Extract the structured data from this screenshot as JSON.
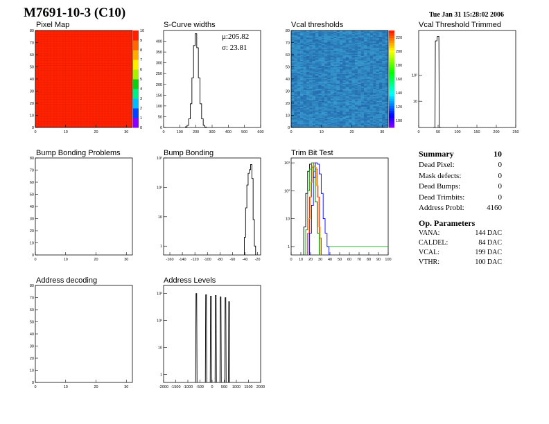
{
  "header": {
    "title": "M7691-10-3 (C10)",
    "date": "Tue Jan 31 15:28:02 2006"
  },
  "summary": {
    "title": "Summary",
    "value": "10",
    "rows": [
      {
        "label": "Dead Pixel:",
        "value": "0"
      },
      {
        "label": "Mask defects:",
        "value": "0"
      },
      {
        "label": "Dead Bumps:",
        "value": "0"
      },
      {
        "label": "Dead Trimbits:",
        "value": "0"
      },
      {
        "label": "Address Probl:",
        "value": "4160"
      }
    ],
    "op_title": "Op. Parameters",
    "op_rows": [
      {
        "label": "VANA:",
        "value": "144 DAC"
      },
      {
        "label": "CALDEL:",
        "value": "84 DAC"
      },
      {
        "label": "VCAL:",
        "value": "199 DAC"
      },
      {
        "label": "VTHR:",
        "value": "100 DAC"
      }
    ]
  },
  "colors": {
    "palette": [
      "#8800ff",
      "#0044ff",
      "#00bbff",
      "#00ee88",
      "#11cc11",
      "#aaee00",
      "#ffee00",
      "#ffaa00",
      "#ff6600",
      "#ff2200"
    ],
    "pixel_map_fill": "#ff2200",
    "line": "#000000"
  },
  "chart_data": [
    {
      "id": "pixel_map",
      "type": "heatmap",
      "title": "Pixel Map",
      "xlim": [
        0,
        32
      ],
      "ylim": [
        0,
        80
      ],
      "xticks": [
        0,
        10,
        20,
        30
      ],
      "yticks": [
        0,
        10,
        20,
        30,
        40,
        50,
        60,
        70,
        80
      ],
      "colorbar": {
        "range": [
          0,
          10
        ],
        "ticks": [
          0,
          1,
          2,
          3,
          4,
          5,
          6,
          7,
          8,
          9,
          10
        ]
      },
      "uniform_value": 10
    },
    {
      "id": "s_curve_widths",
      "type": "histogram",
      "title": "S-Curve widths",
      "xlim": [
        0,
        600
      ],
      "ylim": [
        0,
        450
      ],
      "xticks": [
        0,
        100,
        200,
        300,
        400,
        500,
        600
      ],
      "yticks": [
        0,
        50,
        100,
        150,
        200,
        250,
        300,
        350,
        400
      ],
      "stats": {
        "mean_label": "μ:205.82",
        "sigma_label": "σ: 23.81"
      },
      "x": [
        140,
        150,
        160,
        170,
        180,
        190,
        200,
        210,
        220,
        230,
        240,
        250,
        260
      ],
      "values": [
        3,
        10,
        40,
        110,
        230,
        380,
        435,
        370,
        230,
        110,
        40,
        10,
        2
      ]
    },
    {
      "id": "vcal_thresholds",
      "type": "heatmap",
      "title": "Vcal thresholds",
      "xlim": [
        0,
        32
      ],
      "ylim": [
        0,
        80
      ],
      "xticks": [
        0,
        10,
        20,
        30
      ],
      "yticks": [
        0,
        10,
        20,
        30,
        40,
        50,
        60,
        70,
        80
      ],
      "colorbar": {
        "range": [
          90,
          230
        ],
        "ticks": [
          100,
          120,
          140,
          160,
          180,
          200,
          220
        ]
      },
      "typical_value": 199
    },
    {
      "id": "vcal_threshold_trimmed",
      "type": "histogram",
      "title": "Vcal Threshold Trimmed",
      "xlim": [
        0,
        250
      ],
      "log_y": true,
      "ylim": [
        1,
        5000
      ],
      "xticks": [
        0,
        50,
        100,
        150,
        200,
        250
      ],
      "yticks_labels": [
        "10",
        "10²"
      ],
      "x": [
        40,
        45,
        50,
        55
      ],
      "values": [
        1,
        2000,
        3000,
        1
      ]
    },
    {
      "id": "bump_bonding_problems",
      "type": "heatmap",
      "title": "Bump Bonding Problems",
      "xlim": [
        0,
        32
      ],
      "ylim": [
        0,
        80
      ],
      "xticks": [
        0,
        10,
        20,
        30
      ],
      "yticks": [
        0,
        10,
        20,
        30,
        40,
        50,
        60,
        70,
        80
      ],
      "values": []
    },
    {
      "id": "bump_bonding",
      "type": "histogram",
      "title": "Bump Bonding",
      "xlim": [
        -170,
        -15
      ],
      "log_y": true,
      "ylim": [
        0.5,
        1000
      ],
      "xticks": [
        -160,
        -140,
        -120,
        -100,
        -80,
        -60,
        -40,
        -20
      ],
      "yticks_labels": [
        "1",
        "10",
        "10²",
        "10³"
      ],
      "x": [
        -40,
        -38,
        -36,
        -34,
        -32,
        -30,
        -28,
        -26,
        -24
      ],
      "values": [
        2,
        20,
        120,
        300,
        400,
        600,
        200,
        8,
        1
      ]
    },
    {
      "id": "trim_bit_test",
      "type": "line",
      "title": "Trim Bit Test",
      "xlim": [
        0,
        100
      ],
      "log_y": true,
      "ylim": [
        0.5,
        1500
      ],
      "xticks": [
        0,
        10,
        20,
        30,
        40,
        50,
        60,
        70,
        80,
        90,
        100
      ],
      "yticks_labels": [
        "1",
        "10",
        "10²",
        "10³"
      ],
      "series": [
        {
          "color": "#000000",
          "x": [
            14,
            16,
            18,
            20,
            22,
            24,
            26,
            28
          ],
          "values": [
            5,
            80,
            500,
            900,
            700,
            300,
            40,
            3
          ]
        },
        {
          "color": "#ff0000",
          "x": [
            18,
            20,
            22,
            24,
            26,
            28,
            30
          ],
          "values": [
            3,
            60,
            700,
            1000,
            600,
            60,
            2
          ]
        },
        {
          "color": "#00aa00",
          "x": [
            16,
            18,
            20,
            22,
            24,
            26,
            28
          ],
          "values": [
            4,
            100,
            600,
            1000,
            500,
            40,
            3
          ]
        },
        {
          "color": "#0000ff",
          "x": [
            20,
            22,
            24,
            26,
            28,
            30,
            32,
            34,
            36,
            38
          ],
          "values": [
            3,
            30,
            300,
            1000,
            900,
            400,
            80,
            10,
            3,
            1
          ]
        },
        {
          "color": "#ffaa00",
          "x": [
            19,
            21,
            23,
            25,
            27,
            29
          ],
          "values": [
            10,
            200,
            800,
            700,
            150,
            5
          ]
        }
      ]
    },
    {
      "id": "address_decoding",
      "type": "heatmap",
      "title": "Address decoding",
      "xlim": [
        0,
        32
      ],
      "ylim": [
        0,
        80
      ],
      "xticks": [
        0,
        10,
        20,
        30
      ],
      "yticks": [
        0,
        10,
        20,
        30,
        40,
        50,
        60,
        70,
        80
      ],
      "values": []
    },
    {
      "id": "address_levels",
      "type": "histogram",
      "title": "Address Levels",
      "xlim": [
        -2000,
        2000
      ],
      "log_y": true,
      "ylim": [
        0.5,
        2000
      ],
      "xticks": [
        -2000,
        -1500,
        -1000,
        -500,
        0,
        500,
        1000,
        1500,
        2000
      ],
      "yticks_labels": [
        "1",
        "10",
        "10²",
        "10³"
      ],
      "peaks_x": [
        -650,
        -250,
        -50,
        150,
        350,
        550,
        700
      ],
      "peaks_values": [
        1000,
        900,
        800,
        850,
        750,
        700,
        500
      ]
    }
  ]
}
